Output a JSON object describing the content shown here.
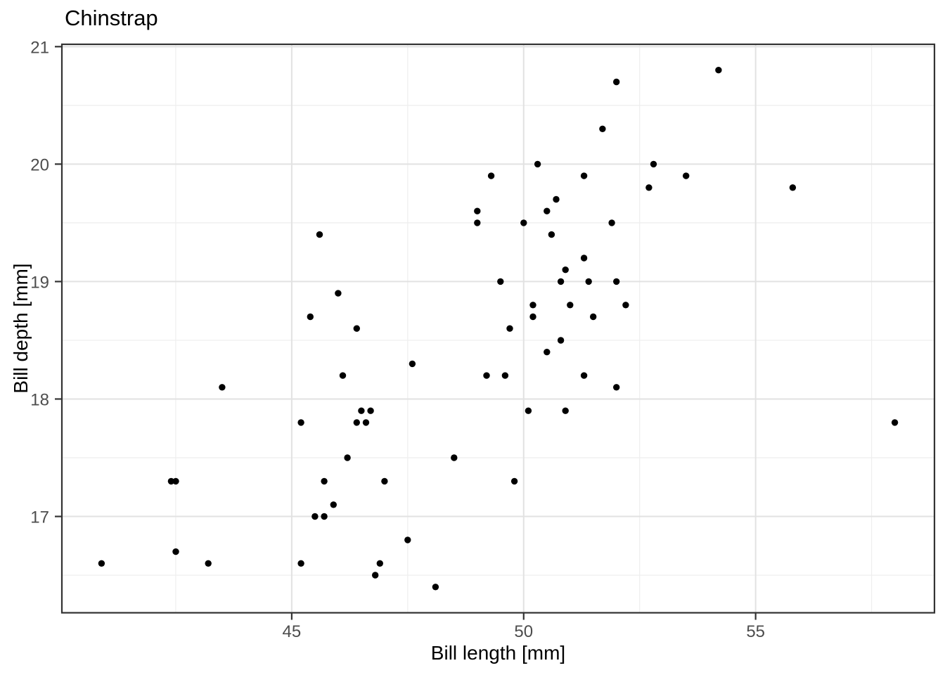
{
  "chart_data": {
    "type": "scatter",
    "title": "Chinstrap",
    "xlabel": "Bill length [mm]",
    "ylabel": "Bill depth [mm]",
    "x_ticks": [
      45,
      50,
      55
    ],
    "y_ticks": [
      17,
      18,
      19,
      20,
      21
    ],
    "x_minor_ticks": [
      42.5,
      47.5,
      52.5,
      57.5
    ],
    "y_minor_ticks": [
      16.5,
      17.5,
      18.5,
      19.5,
      20.5
    ],
    "xlim": [
      40.045,
      58.855
    ],
    "ylim": [
      16.18,
      21.02
    ],
    "grid": "major+minor",
    "legend_position": "none",
    "points": [
      [
        46.5,
        17.9
      ],
      [
        50.0,
        19.5
      ],
      [
        51.3,
        19.2
      ],
      [
        45.4,
        18.7
      ],
      [
        52.7,
        19.8
      ],
      [
        45.2,
        17.8
      ],
      [
        46.1,
        18.2
      ],
      [
        51.3,
        18.2
      ],
      [
        46.0,
        18.9
      ],
      [
        51.3,
        19.9
      ],
      [
        46.6,
        17.8
      ],
      [
        51.7,
        20.3
      ],
      [
        47.0,
        17.3
      ],
      [
        52.0,
        18.1
      ],
      [
        45.9,
        17.1
      ],
      [
        50.5,
        19.6
      ],
      [
        50.3,
        20.0
      ],
      [
        58.0,
        17.8
      ],
      [
        46.4,
        18.6
      ],
      [
        49.2,
        18.2
      ],
      [
        42.4,
        17.3
      ],
      [
        48.5,
        17.5
      ],
      [
        43.2,
        16.6
      ],
      [
        50.6,
        19.4
      ],
      [
        46.7,
        17.9
      ],
      [
        52.0,
        19.0
      ],
      [
        50.5,
        18.4
      ],
      [
        49.5,
        19.0
      ],
      [
        46.4,
        17.8
      ],
      [
        52.8,
        20.0
      ],
      [
        40.9,
        16.6
      ],
      [
        54.2,
        20.8
      ],
      [
        42.5,
        16.7
      ],
      [
        51.0,
        18.8
      ],
      [
        49.7,
        18.6
      ],
      [
        47.5,
        16.8
      ],
      [
        47.6,
        18.3
      ],
      [
        52.0,
        20.7
      ],
      [
        46.9,
        16.6
      ],
      [
        53.5,
        19.9
      ],
      [
        49.0,
        19.5
      ],
      [
        46.2,
        17.5
      ],
      [
        50.9,
        19.1
      ],
      [
        45.5,
        17.0
      ],
      [
        50.9,
        17.9
      ],
      [
        50.8,
        18.5
      ],
      [
        50.1,
        17.9
      ],
      [
        49.0,
        19.6
      ],
      [
        51.5,
        18.7
      ],
      [
        49.8,
        17.3
      ],
      [
        48.1,
        16.4
      ],
      [
        51.4,
        19.0
      ],
      [
        45.7,
        17.3
      ],
      [
        50.7,
        19.7
      ],
      [
        42.5,
        17.3
      ],
      [
        52.2,
        18.8
      ],
      [
        45.2,
        16.6
      ],
      [
        49.3,
        19.9
      ],
      [
        50.2,
        18.8
      ],
      [
        45.6,
        19.4
      ],
      [
        51.9,
        19.5
      ],
      [
        46.8,
        16.5
      ],
      [
        45.7,
        17.0
      ],
      [
        55.8,
        19.8
      ],
      [
        43.5,
        18.1
      ],
      [
        49.6,
        18.2
      ],
      [
        50.8,
        19.0
      ],
      [
        50.2,
        18.7
      ]
    ]
  },
  "style": {
    "background": "#ffffff",
    "point_color": "#000000",
    "grid_major_color": "#e2e2e2",
    "grid_minor_color": "#eeeeee",
    "panel_border_color": "#333333",
    "tick_color": "#333333",
    "tick_label_color": "#4d4d4d",
    "title_color": "#000000"
  }
}
